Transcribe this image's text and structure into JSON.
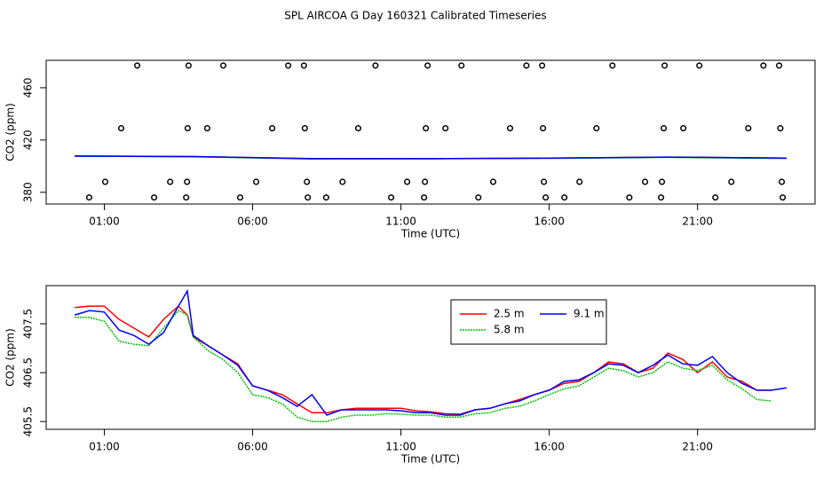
{
  "title": "SPL AIRCOA G  Day 160321  Calibrated Timeseries",
  "chart_data": [
    {
      "type": "scatter",
      "xlabel": "Time (UTC)",
      "ylabel": "CO2 (ppm)",
      "xlim": [
        -0.96,
        24.96
      ],
      "ylim": [
        371,
        481
      ],
      "xticks": [
        {
          "value": 1,
          "label": "01:00"
        },
        {
          "value": 6,
          "label": "06:00"
        },
        {
          "value": 11,
          "label": "11:00"
        },
        {
          "value": 16,
          "label": "16:00"
        },
        {
          "value": 21,
          "label": "21:00"
        }
      ],
      "yticks": [
        380,
        420,
        460
      ],
      "point_color": "#000000",
      "x": [
        2.11,
        3.84,
        5.01,
        7.2,
        7.73,
        10.14,
        11.9,
        13.04,
        15.23,
        15.76,
        18.13,
        19.89,
        21.06,
        23.22,
        23.75,
        1.57,
        3.81,
        4.47,
        6.66,
        7.76,
        9.56,
        11.84,
        12.5,
        14.68,
        15.79,
        17.59,
        19.86,
        20.52,
        22.71,
        23.79,
        1.03,
        3.22,
        3.79,
        6.12,
        7.83,
        9.03,
        11.21,
        11.81,
        14.11,
        15.82,
        17.02,
        19.23,
        19.8,
        22.14,
        23.84,
        0.49,
        2.68,
        3.76,
        5.58,
        7.86,
        8.48,
        10.67,
        11.78,
        13.61,
        15.88,
        16.51,
        18.7,
        19.77,
        21.6,
        23.87
      ],
      "values": [
        477,
        477,
        477,
        477,
        477,
        477,
        477,
        477,
        477,
        477,
        477,
        477,
        477,
        477,
        477,
        429,
        429,
        429,
        429,
        429,
        429,
        429,
        429,
        429,
        429,
        429,
        429,
        429,
        429,
        429,
        388,
        388,
        388,
        388,
        388,
        388,
        388,
        388,
        388,
        388,
        388,
        388,
        388,
        388,
        388,
        376,
        376,
        376,
        376,
        376,
        376,
        376,
        376,
        376,
        376,
        376,
        376,
        376,
        376,
        376
      ],
      "series": [
        {
          "color": "#ff0000",
          "x": [
            0,
            4,
            8,
            12,
            16,
            20,
            24
          ],
          "values": [
            407.8,
            407.3,
            405.8,
            405.7,
            406.1,
            406.9,
            406.1
          ]
        },
        {
          "color": "#00c000",
          "x": [
            0,
            4,
            8,
            12,
            16,
            20,
            24
          ],
          "values": [
            407.6,
            407.2,
            405.5,
            405.6,
            406.0,
            406.7,
            405.9
          ]
        },
        {
          "color": "#0000ff",
          "x": [
            0,
            4,
            8,
            12,
            16,
            20,
            24
          ],
          "values": [
            407.7,
            407.3,
            405.7,
            405.7,
            406.1,
            406.9,
            406.2
          ]
        }
      ]
    },
    {
      "type": "line",
      "xlabel": "Time (UTC)",
      "ylabel": "CO2 (ppm)",
      "xlim": [
        -0.96,
        24.96
      ],
      "ylim": [
        405.34,
        408.28
      ],
      "xticks": [
        {
          "value": 1,
          "label": "01:00"
        },
        {
          "value": 6,
          "label": "06:00"
        },
        {
          "value": 11,
          "label": "11:00"
        },
        {
          "value": 16,
          "label": "16:00"
        },
        {
          "value": 21,
          "label": "21:00"
        }
      ],
      "yticks": [
        405.5,
        406.5,
        407.5
      ],
      "legend": "top",
      "x": [
        0,
        0.5,
        1,
        1.5,
        2,
        2.5,
        3,
        3.5,
        3.8,
        4,
        4.5,
        5,
        5.5,
        6,
        6.5,
        7,
        7.5,
        8,
        8.5,
        9,
        9.5,
        10,
        10.5,
        11,
        11.5,
        12,
        12.5,
        13,
        13.5,
        14,
        14.5,
        15,
        15.5,
        16,
        16.5,
        17,
        17.5,
        18,
        18.5,
        19,
        19.5,
        20,
        20.5,
        21,
        21.5,
        22,
        22.5,
        23,
        23.5,
        24
      ],
      "series": [
        {
          "name": "2.5 m",
          "color": "#ff0000",
          "values": [
            407.83,
            407.86,
            407.86,
            407.59,
            407.41,
            407.23,
            407.59,
            407.86,
            407.68,
            407.23,
            407.05,
            406.86,
            406.68,
            406.23,
            406.14,
            406.05,
            405.86,
            405.68,
            405.68,
            405.74,
            405.77,
            405.77,
            405.77,
            405.77,
            405.72,
            405.7,
            405.66,
            405.65,
            405.74,
            405.77,
            405.86,
            405.95,
            406.05,
            406.14,
            406.28,
            406.32,
            406.5,
            406.72,
            406.68,
            406.5,
            406.59,
            406.9,
            406.77,
            406.5,
            406.72,
            406.41,
            406.32,
            406.14,
            406.14,
            null
          ]
        },
        {
          "name": "5.8 m",
          "color": "#00c000",
          "dash": "2,1",
          "values": [
            407.63,
            407.63,
            407.55,
            407.14,
            407.08,
            407.05,
            407.41,
            407.77,
            407.68,
            407.23,
            406.95,
            406.77,
            406.5,
            406.05,
            405.99,
            405.86,
            405.59,
            405.5,
            405.5,
            405.59,
            405.63,
            405.63,
            405.66,
            405.65,
            405.63,
            405.63,
            405.59,
            405.59,
            405.66,
            405.68,
            405.77,
            405.81,
            405.92,
            406.05,
            406.17,
            406.23,
            406.41,
            406.59,
            406.54,
            406.41,
            406.5,
            406.72,
            406.59,
            406.54,
            406.65,
            406.35,
            406.17,
            405.95,
            405.92,
            null
          ]
        },
        {
          "name": "9.1 m",
          "color": "#0000ff",
          "values": [
            407.68,
            407.77,
            407.74,
            407.37,
            407.26,
            407.08,
            407.32,
            407.86,
            408.17,
            407.26,
            407.05,
            406.86,
            406.65,
            406.23,
            406.14,
            405.99,
            405.81,
            406.05,
            405.63,
            405.74,
            405.74,
            405.74,
            405.74,
            405.72,
            405.68,
            405.68,
            405.63,
            405.63,
            405.74,
            405.77,
            405.86,
            405.92,
            406.05,
            406.14,
            406.32,
            406.35,
            406.5,
            406.68,
            406.65,
            406.5,
            406.65,
            406.86,
            406.68,
            406.65,
            406.83,
            406.5,
            406.28,
            406.14,
            406.14,
            406.19
          ]
        }
      ]
    }
  ]
}
